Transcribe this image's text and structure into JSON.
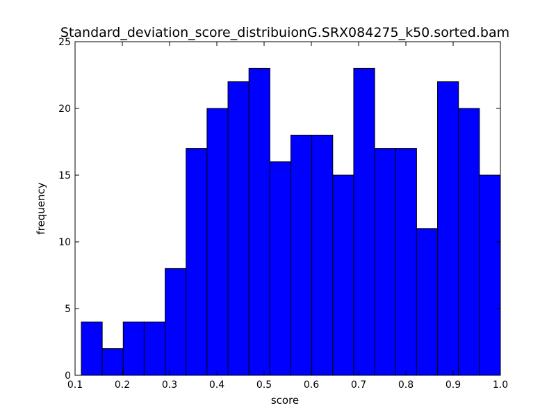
{
  "colors": {
    "bar_fill": "#0000ff",
    "bar_edge": "#000000",
    "background": "#ffffff"
  },
  "chart_data": {
    "type": "bar",
    "title": "Standard_deviation_score_distribuionG.SRX084275_k50.sorted.bam",
    "xlabel": "score",
    "ylabel": "frequency",
    "xlim": [
      0.1,
      1.0
    ],
    "ylim": [
      0,
      25
    ],
    "xticks": [
      "0.1",
      "0.2",
      "0.3",
      "0.4",
      "0.5",
      "0.6",
      "0.7",
      "0.8",
      "0.9",
      "1.0"
    ],
    "yticks": [
      "0",
      "5",
      "10",
      "15",
      "20",
      "25"
    ],
    "bin_start": 0.1132,
    "bin_end": 1.0,
    "bins": 20,
    "values": [
      4,
      2,
      4,
      4,
      8,
      17,
      20,
      22,
      23,
      16,
      18,
      18,
      15,
      23,
      17,
      17,
      11,
      22,
      20,
      15
    ],
    "grid": false,
    "legend": "none"
  }
}
